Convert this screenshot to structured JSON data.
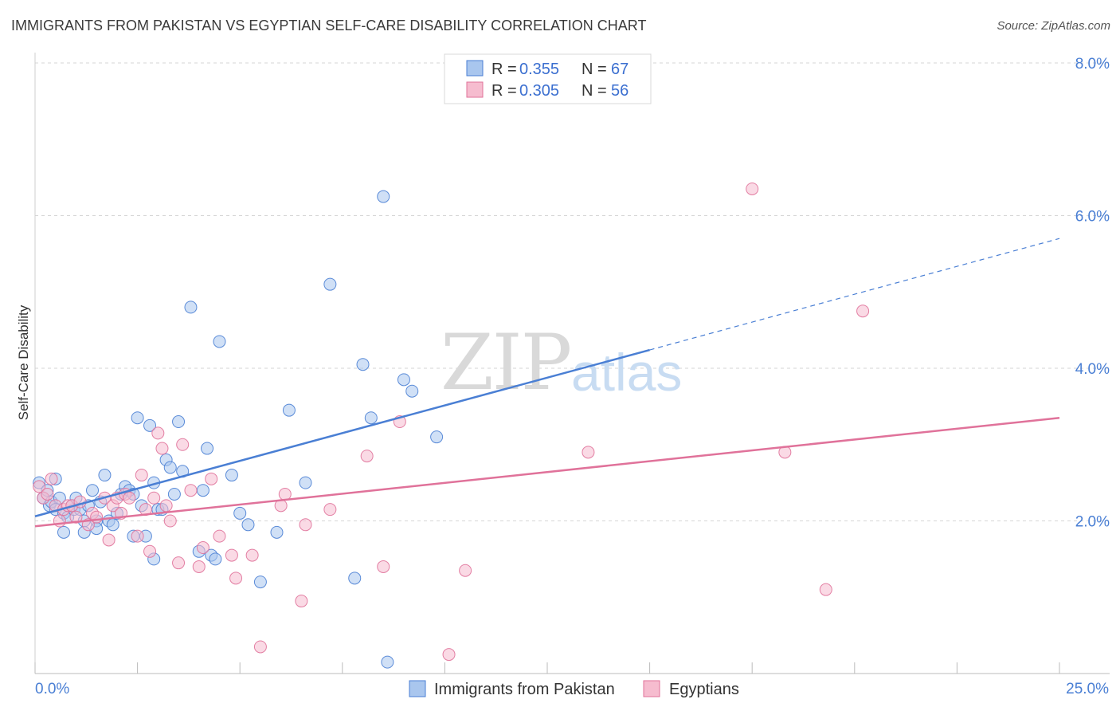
{
  "title": "IMMIGRANTS FROM PAKISTAN VS EGYPTIAN SELF-CARE DISABILITY CORRELATION CHART",
  "source": "Source: ZipAtlas.com",
  "watermark": {
    "zip": "ZIP",
    "atlas": "atlas"
  },
  "chart_data": {
    "type": "scatter",
    "xlabel": "",
    "ylabel": "Self-Care Disability",
    "xlim": [
      0,
      25
    ],
    "ylim": [
      0,
      8.0
    ],
    "x_tick_labels": [
      "0.0%",
      "25.0%"
    ],
    "y_ticks": [
      2.0,
      4.0,
      6.0,
      8.0
    ],
    "y_tick_labels": [
      "2.0%",
      "4.0%",
      "6.0%",
      "8.0%"
    ],
    "legend": {
      "r_label": "R =",
      "n_label": "N =",
      "items": [
        {
          "name": "Immigrants from Pakistan",
          "r": "0.355",
          "n": "67"
        },
        {
          "name": "Egyptians",
          "r": "0.305",
          "n": "56"
        }
      ]
    },
    "series": [
      {
        "name": "Immigrants from Pakistan",
        "color": "#4a7fd4",
        "fill": "#a9c6ee",
        "trend": {
          "solid": [
            [
              0,
              2.06
            ],
            [
              15,
              4.24
            ]
          ],
          "dashed": [
            [
              15,
              4.24
            ],
            [
              25,
              5.7
            ]
          ]
        },
        "points": [
          [
            0.1,
            2.5
          ],
          [
            0.2,
            2.3
          ],
          [
            0.3,
            2.4
          ],
          [
            0.35,
            2.2
          ],
          [
            0.4,
            2.25
          ],
          [
            0.5,
            2.15
          ],
          [
            0.5,
            2.55
          ],
          [
            0.6,
            2.3
          ],
          [
            0.7,
            2.1
          ],
          [
            0.8,
            2.05
          ],
          [
            0.9,
            2.2
          ],
          [
            0.95,
            2.15
          ],
          [
            1.0,
            2.3
          ],
          [
            1.1,
            2.15
          ],
          [
            1.2,
            2.0
          ],
          [
            1.3,
            2.2
          ],
          [
            1.4,
            2.4
          ],
          [
            1.5,
            2.0
          ],
          [
            1.6,
            2.25
          ],
          [
            1.7,
            2.6
          ],
          [
            1.8,
            2.0
          ],
          [
            1.9,
            1.95
          ],
          [
            2.0,
            2.1
          ],
          [
            2.1,
            2.35
          ],
          [
            2.2,
            2.45
          ],
          [
            2.3,
            2.4
          ],
          [
            2.4,
            2.35
          ],
          [
            2.5,
            3.35
          ],
          [
            2.6,
            2.2
          ],
          [
            2.7,
            1.8
          ],
          [
            2.8,
            3.25
          ],
          [
            2.9,
            2.5
          ],
          [
            3.0,
            2.15
          ],
          [
            3.1,
            2.15
          ],
          [
            3.2,
            2.8
          ],
          [
            3.3,
            2.7
          ],
          [
            3.4,
            2.35
          ],
          [
            3.5,
            3.3
          ],
          [
            3.6,
            2.65
          ],
          [
            3.8,
            4.8
          ],
          [
            4.0,
            1.6
          ],
          [
            4.1,
            2.4
          ],
          [
            4.2,
            2.95
          ],
          [
            4.3,
            1.55
          ],
          [
            4.4,
            1.5
          ],
          [
            4.5,
            4.35
          ],
          [
            4.8,
            2.6
          ],
          [
            5.0,
            2.1
          ],
          [
            5.2,
            1.95
          ],
          [
            5.5,
            1.2
          ],
          [
            5.9,
            1.85
          ],
          [
            6.2,
            3.45
          ],
          [
            6.6,
            2.5
          ],
          [
            7.2,
            5.1
          ],
          [
            7.8,
            1.25
          ],
          [
            8.2,
            3.35
          ],
          [
            8.5,
            6.25
          ],
          [
            8.6,
            0.15
          ],
          [
            9.0,
            3.85
          ],
          [
            9.2,
            3.7
          ],
          [
            9.8,
            3.1
          ],
          [
            1.5,
            1.9
          ],
          [
            2.4,
            1.8
          ],
          [
            1.2,
            1.85
          ],
          [
            0.7,
            1.85
          ],
          [
            2.9,
            1.5
          ],
          [
            8.0,
            4.05
          ]
        ]
      },
      {
        "name": "Egyptians",
        "color": "#e0729a",
        "fill": "#f6bccf",
        "trend": {
          "solid": [
            [
              0,
              1.93
            ],
            [
              25,
              3.35
            ]
          ]
        },
        "points": [
          [
            0.1,
            2.45
          ],
          [
            0.2,
            2.3
          ],
          [
            0.3,
            2.35
          ],
          [
            0.4,
            2.55
          ],
          [
            0.5,
            2.2
          ],
          [
            0.7,
            2.15
          ],
          [
            0.8,
            2.2
          ],
          [
            0.9,
            2.2
          ],
          [
            1.0,
            2.05
          ],
          [
            1.1,
            2.25
          ],
          [
            1.3,
            1.95
          ],
          [
            1.4,
            2.1
          ],
          [
            1.5,
            2.05
          ],
          [
            1.7,
            2.3
          ],
          [
            1.8,
            1.75
          ],
          [
            1.9,
            2.2
          ],
          [
            2.0,
            2.3
          ],
          [
            2.1,
            2.1
          ],
          [
            2.2,
            2.35
          ],
          [
            2.3,
            2.3
          ],
          [
            2.5,
            1.8
          ],
          [
            2.6,
            2.6
          ],
          [
            2.7,
            2.15
          ],
          [
            2.8,
            1.6
          ],
          [
            2.9,
            2.3
          ],
          [
            3.0,
            3.15
          ],
          [
            3.1,
            2.95
          ],
          [
            3.2,
            2.2
          ],
          [
            3.3,
            2.0
          ],
          [
            3.5,
            1.45
          ],
          [
            3.6,
            3.0
          ],
          [
            3.8,
            2.4
          ],
          [
            4.0,
            1.4
          ],
          [
            4.1,
            1.65
          ],
          [
            4.3,
            2.55
          ],
          [
            4.5,
            1.8
          ],
          [
            4.8,
            1.55
          ],
          [
            4.9,
            1.25
          ],
          [
            5.3,
            1.55
          ],
          [
            5.5,
            0.35
          ],
          [
            6.0,
            2.2
          ],
          [
            6.1,
            2.35
          ],
          [
            6.5,
            0.95
          ],
          [
            6.6,
            1.95
          ],
          [
            7.2,
            2.15
          ],
          [
            8.1,
            2.85
          ],
          [
            8.5,
            1.4
          ],
          [
            8.9,
            3.3
          ],
          [
            10.1,
            0.25
          ],
          [
            10.5,
            1.35
          ],
          [
            13.5,
            2.9
          ],
          [
            17.5,
            6.35
          ],
          [
            18.3,
            2.9
          ],
          [
            19.3,
            1.1
          ],
          [
            20.2,
            4.75
          ],
          [
            0.6,
            2.0
          ]
        ]
      }
    ]
  }
}
